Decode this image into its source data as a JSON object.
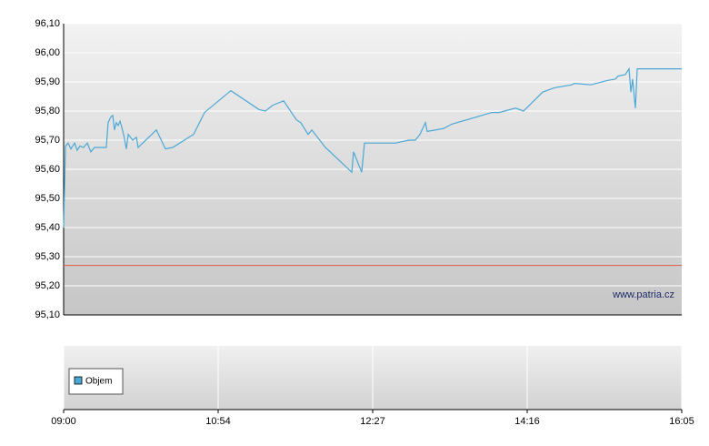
{
  "chart_data": {
    "type": "line",
    "xlim": [
      0,
      4
    ],
    "xticks": [
      {
        "value": 0,
        "label": "09:00"
      },
      {
        "value": 1,
        "label": "10:54"
      },
      {
        "value": 2,
        "label": "12:27"
      },
      {
        "value": 3,
        "label": "14:16"
      },
      {
        "value": 4,
        "label": "16:05"
      }
    ],
    "ylim": [
      95.1,
      96.1
    ],
    "yticks": [
      {
        "value": 95.1,
        "label": "95,10"
      },
      {
        "value": 95.2,
        "label": "95,20"
      },
      {
        "value": 95.3,
        "label": "95,30"
      },
      {
        "value": 95.4,
        "label": "95,40"
      },
      {
        "value": 95.5,
        "label": "95,50"
      },
      {
        "value": 95.6,
        "label": "95,60"
      },
      {
        "value": 95.7,
        "label": "95,70"
      },
      {
        "value": 95.8,
        "label": "95,80"
      },
      {
        "value": 95.9,
        "label": "95,90"
      },
      {
        "value": 96.0,
        "label": "96,00"
      },
      {
        "value": 96.1,
        "label": "96,10"
      }
    ],
    "grid": true,
    "series": [
      {
        "color": "#4ba8d6",
        "x": [
          0,
          0.012,
          0.029,
          0.047,
          0.071,
          0.088,
          0.106,
          0.129,
          0.153,
          0.176,
          0.2,
          0.276,
          0.288,
          0.306,
          0.318,
          0.329,
          0.341,
          0.353,
          0.365,
          0.376,
          0.388,
          0.406,
          0.418,
          0.447,
          0.471,
          0.482,
          0.6,
          0.659,
          0.706,
          0.841,
          0.912,
          1.082,
          1.265,
          1.306,
          1.353,
          1.424,
          1.506,
          1.535,
          1.582,
          1.606,
          1.694,
          1.865,
          1.876,
          1.929,
          1.947,
          2.147,
          2.235,
          2.276,
          2.306,
          2.341,
          2.353,
          2.459,
          2.512,
          2.771,
          2.818,
          2.924,
          2.976,
          3.1,
          3.176,
          3.288,
          3.306,
          3.412,
          3.518,
          3.571,
          3.588,
          3.635,
          3.659,
          3.671,
          3.682,
          3.7,
          3.712,
          4
        ],
        "values": [
          95.4,
          95.68,
          95.69,
          95.67,
          95.69,
          95.665,
          95.68,
          95.675,
          95.69,
          95.66,
          95.675,
          95.675,
          95.76,
          95.78,
          95.785,
          95.735,
          95.76,
          95.75,
          95.765,
          95.745,
          95.72,
          95.67,
          95.72,
          95.7,
          95.71,
          95.675,
          95.735,
          95.67,
          95.675,
          95.72,
          95.795,
          95.87,
          95.805,
          95.8,
          95.82,
          95.835,
          95.77,
          95.76,
          95.72,
          95.735,
          95.675,
          95.59,
          95.66,
          95.59,
          95.69,
          95.69,
          95.7,
          95.7,
          95.72,
          95.76,
          95.73,
          95.74,
          95.755,
          95.795,
          95.795,
          95.81,
          95.8,
          95.865,
          95.88,
          95.89,
          95.895,
          95.89,
          95.905,
          95.91,
          95.92,
          95.925,
          95.945,
          95.865,
          95.91,
          95.81,
          95.945,
          95.945
        ]
      }
    ],
    "reference_line": {
      "value": 95.27,
      "color": "#e05a4a"
    },
    "watermark": "www.patria.cz",
    "volume_legend": "Objem"
  }
}
